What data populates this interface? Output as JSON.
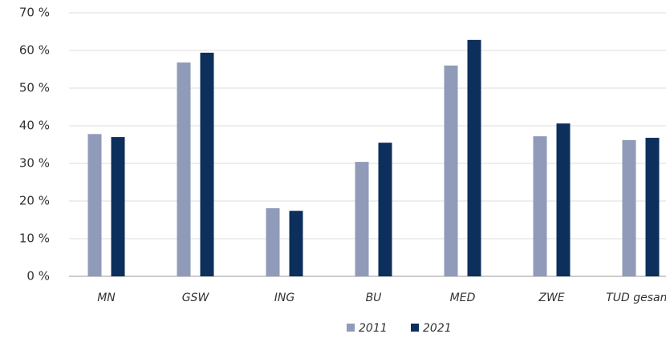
{
  "chart_data": {
    "type": "bar",
    "categories": [
      "MN",
      "GSW",
      "ING",
      "BU",
      "MED",
      "ZWE",
      "TUD gesamt"
    ],
    "series": [
      {
        "name": "2011",
        "color": "#8f9bb9",
        "values": [
          37.8,
          56.8,
          18.1,
          30.4,
          56.0,
          37.2,
          36.2
        ]
      },
      {
        "name": "2021",
        "color": "#0c2f5c",
        "values": [
          37.0,
          59.4,
          17.4,
          35.5,
          62.8,
          40.6,
          36.8
        ]
      }
    ],
    "ylim": [
      0,
      70
    ],
    "yticks": [
      {
        "value": 0,
        "label": "0 %"
      },
      {
        "value": 10,
        "label": "10 %"
      },
      {
        "value": 20,
        "label": "20 %"
      },
      {
        "value": 30,
        "label": "30 %"
      },
      {
        "value": 40,
        "label": "40 %"
      },
      {
        "value": 50,
        "label": "50 %"
      },
      {
        "value": 60,
        "label": "60 %"
      },
      {
        "value": 70,
        "label": "70 %"
      }
    ],
    "grid": true,
    "legend": "bottom"
  }
}
